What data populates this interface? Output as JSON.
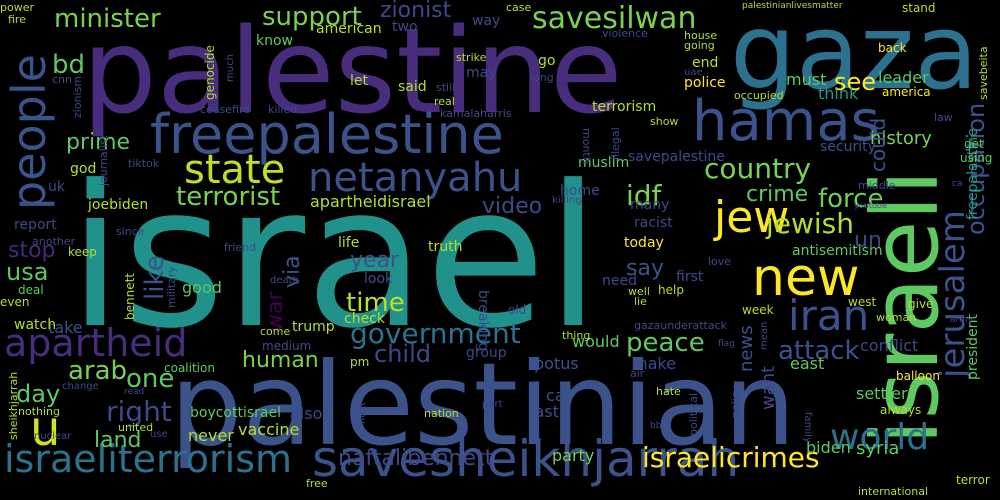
{
  "words": [
    {
      "text": "israel",
      "color": "#21918c"
    },
    {
      "text": "palestine",
      "color": "#472d7b"
    },
    {
      "text": "palestinian",
      "color": "#3b528b"
    },
    {
      "text": "gaza",
      "color": "#2c728e"
    },
    {
      "text": "israeli",
      "color": "#5ec962"
    },
    {
      "text": "freepalestine",
      "color": "#3b528b"
    },
    {
      "text": "savesheikhjarrah",
      "color": "#3b528b"
    },
    {
      "text": "hamas",
      "color": "#3b528b"
    },
    {
      "text": "new",
      "color": "#fde725"
    },
    {
      "text": "people",
      "color": "#3b528b"
    },
    {
      "text": "israeliterrorism",
      "color": "#2c728e"
    },
    {
      "text": "apartheid",
      "color": "#472d7b"
    },
    {
      "text": "netanyahu",
      "color": "#3b528b"
    },
    {
      "text": "jerusalem",
      "color": "#3b528b"
    },
    {
      "text": "state",
      "color": "#bddf26"
    },
    {
      "text": "u",
      "color": "#d2e21b"
    },
    {
      "text": "jew",
      "color": "#fde725"
    },
    {
      "text": "iran",
      "color": "#3b528b"
    },
    {
      "text": "world",
      "color": "#2c728e"
    },
    {
      "text": "savesilwan",
      "color": "#7ad151"
    },
    {
      "text": "jewish",
      "color": "#b5de2b"
    },
    {
      "text": "terrorist",
      "color": "#7ad151"
    },
    {
      "text": "country",
      "color": "#7ad151"
    },
    {
      "text": "minister",
      "color": "#7ad151"
    },
    {
      "text": "support",
      "color": "#7ad151"
    },
    {
      "text": "israelicrimes",
      "color": "#fde725"
    },
    {
      "text": "occupation",
      "color": "#3b528b"
    },
    {
      "text": "government",
      "color": "#2c728e"
    },
    {
      "text": "right",
      "color": "#3e4989"
    },
    {
      "text": "like",
      "color": "#3b528b"
    },
    {
      "text": "idf",
      "color": "#7ad151"
    },
    {
      "text": "naftalibennett",
      "color": "#3e4989"
    },
    {
      "text": "attack",
      "color": "#3b528b"
    },
    {
      "text": "arab",
      "color": "#7ad151"
    },
    {
      "text": "child",
      "color": "#3e4989"
    },
    {
      "text": "time",
      "color": "#bddf26"
    },
    {
      "text": "war",
      "color": "#440154"
    },
    {
      "text": "force",
      "color": "#6ece58"
    },
    {
      "text": "peace",
      "color": "#5ec962"
    },
    {
      "text": "land",
      "color": "#5ec962"
    },
    {
      "text": "day",
      "color": "#5ec962"
    },
    {
      "text": "one",
      "color": "#5ec962"
    },
    {
      "text": "human",
      "color": "#7ad151"
    },
    {
      "text": "bd",
      "color": "#5ec962"
    },
    {
      "text": "prime",
      "color": "#5ec962"
    },
    {
      "text": "see",
      "color": "#fde725"
    },
    {
      "text": "crime",
      "color": "#5ec962"
    },
    {
      "text": "usa",
      "color": "#5ec962"
    },
    {
      "text": "stop",
      "color": "#482878"
    },
    {
      "text": "year",
      "color": "#3b528b"
    },
    {
      "text": "via",
      "color": "#3b528b"
    },
    {
      "text": "un",
      "color": "#3e4989"
    },
    {
      "text": "say",
      "color": "#3b528b"
    },
    {
      "text": "video",
      "color": "#3e4989"
    },
    {
      "text": "zionist",
      "color": "#3e4989"
    },
    {
      "text": "news",
      "color": "#3b528b"
    },
    {
      "text": "apartheidisrael",
      "color": "#b5de2b"
    },
    {
      "text": "want",
      "color": "#3e4989"
    },
    {
      "text": "history",
      "color": "#7ad151"
    },
    {
      "text": "syria",
      "color": "#5ec962"
    },
    {
      "text": "biden",
      "color": "#5ec962"
    },
    {
      "text": "security",
      "color": "#3b528b"
    },
    {
      "text": "antisemitism",
      "color": "#5ec962"
    },
    {
      "text": "think",
      "color": "#1f9e89"
    },
    {
      "text": "must",
      "color": "#5ec962"
    },
    {
      "text": "leader",
      "color": "#5ec962"
    },
    {
      "text": "conflict",
      "color": "#3e4989"
    },
    {
      "text": "settler",
      "color": "#5ec962"
    },
    {
      "text": "president",
      "color": "#5ec962"
    },
    {
      "text": "freepalastine",
      "color": "#1fa187"
    },
    {
      "text": "east",
      "color": "#5ec962"
    },
    {
      "text": "could",
      "color": "#3b528b"
    },
    {
      "text": "vaccine",
      "color": "#b5de2b"
    },
    {
      "text": "never",
      "color": "#b5de2b"
    },
    {
      "text": "party",
      "color": "#7ad151"
    },
    {
      "text": "call",
      "color": "#3b528b"
    },
    {
      "text": "last",
      "color": "#3b528b"
    },
    {
      "text": "potus",
      "color": "#3b528b"
    },
    {
      "text": "would",
      "color": "#5ec962"
    },
    {
      "text": "make",
      "color": "#3e4989"
    },
    {
      "text": "also",
      "color": "#3e4989"
    },
    {
      "text": "check",
      "color": "#b5de2b"
    },
    {
      "text": "trump",
      "color": "#b5de2b"
    },
    {
      "text": "boycottisrael",
      "color": "#5ec962"
    },
    {
      "text": "coalition",
      "color": "#5ec962"
    },
    {
      "text": "good",
      "color": "#5ec962"
    },
    {
      "text": "take",
      "color": "#3b528b"
    },
    {
      "text": "watch",
      "color": "#b5de2b"
    },
    {
      "text": "report",
      "color": "#3e4989"
    },
    {
      "text": "joebiden",
      "color": "#b5de2b"
    },
    {
      "text": "life",
      "color": "#b5de2b"
    },
    {
      "text": "truth",
      "color": "#b5de2b"
    },
    {
      "text": "look",
      "color": "#3b528b"
    },
    {
      "text": "today",
      "color": "#fde725"
    },
    {
      "text": "breaking",
      "color": "#3e4989"
    },
    {
      "text": "group",
      "color": "#3e4989"
    },
    {
      "text": "need",
      "color": "#3e4989"
    },
    {
      "text": "first",
      "color": "#3e4989"
    },
    {
      "text": "muslim",
      "color": "#5ec962"
    },
    {
      "text": "savepalestine",
      "color": "#3e4989"
    },
    {
      "text": "terrorism",
      "color": "#b5de2b"
    },
    {
      "text": "home",
      "color": "#3e4989"
    },
    {
      "text": "many",
      "color": "#3e4989"
    },
    {
      "text": "racist",
      "color": "#3e4989"
    },
    {
      "text": "god",
      "color": "#b5de2b"
    },
    {
      "text": "uk",
      "color": "#3e4989"
    },
    {
      "text": "american",
      "color": "#b5de2b"
    },
    {
      "text": "know",
      "color": "#5ec962"
    },
    {
      "text": "two",
      "color": "#3e4989"
    },
    {
      "text": "way",
      "color": "#3e4989"
    },
    {
      "text": "let",
      "color": "#b5de2b"
    },
    {
      "text": "said",
      "color": "#b5de2b"
    },
    {
      "text": "may",
      "color": "#3e4989"
    },
    {
      "text": "go",
      "color": "#b5de2b"
    },
    {
      "text": "end",
      "color": "#b5de2b"
    },
    {
      "text": "police",
      "color": "#fde725"
    },
    {
      "text": "genocide",
      "color": "#b5de2b"
    },
    {
      "text": "keep",
      "color": "#b5de2b"
    },
    {
      "text": "bennett",
      "color": "#b5de2b"
    },
    {
      "text": "even",
      "color": "#b5de2b"
    },
    {
      "text": "deal",
      "color": "#5ec962"
    },
    {
      "text": "medium",
      "color": "#3e4989"
    },
    {
      "text": "pm",
      "color": "#b5de2b"
    },
    {
      "text": "old",
      "color": "#3e4989"
    },
    {
      "text": "help",
      "color": "#b5de2b"
    },
    {
      "text": "week",
      "color": "#b5de2b"
    },
    {
      "text": "west",
      "color": "#b5de2b"
    },
    {
      "text": "give",
      "color": "#b5de2b"
    },
    {
      "text": "back",
      "color": "#fde725"
    },
    {
      "text": "america",
      "color": "#fde725"
    },
    {
      "text": "stand",
      "color": "#b5de2b"
    },
    {
      "text": "using",
      "color": "#5ec962"
    },
    {
      "text": "get",
      "color": "#5ec962"
    },
    {
      "text": "always",
      "color": "#b5de2b"
    },
    {
      "text": "terror",
      "color": "#b5de2b"
    },
    {
      "text": "international",
      "color": "#b5de2b"
    },
    {
      "text": "balloon",
      "color": "#fde725"
    },
    {
      "text": "sheikhjarrah",
      "color": "#b5de2b"
    },
    {
      "text": "nothing",
      "color": "#b5de2b"
    },
    {
      "text": "united",
      "color": "#b5de2b"
    },
    {
      "text": "nation",
      "color": "#b5de2b"
    },
    {
      "text": "free",
      "color": "#b5de2b"
    },
    {
      "text": "political",
      "color": "#3e4989"
    },
    {
      "text": "policy",
      "color": "#3e4989"
    },
    {
      "text": "hate",
      "color": "#b5de2b"
    },
    {
      "text": "air",
      "color": "#3e4989"
    },
    {
      "text": "thing",
      "color": "#b5de2b"
    },
    {
      "text": "gazaunderattack",
      "color": "#3e4989"
    },
    {
      "text": "come",
      "color": "#b5de2b"
    },
    {
      "text": "occupied",
      "color": "#b5de2b"
    },
    {
      "text": "power",
      "color": "#b5de2b"
    },
    {
      "text": "fire",
      "color": "#b5de2b"
    },
    {
      "text": "cnn",
      "color": "#3e4989"
    },
    {
      "text": "zionism",
      "color": "#3e4989"
    },
    {
      "text": "tiktok",
      "color": "#3e4989"
    },
    {
      "text": "killed",
      "color": "#3e4989"
    },
    {
      "text": "ceasefire",
      "color": "#3e4989"
    },
    {
      "text": "real",
      "color": "#b5de2b"
    },
    {
      "text": "still",
      "color": "#3e4989"
    },
    {
      "text": "kamalaharris",
      "color": "#3e4989"
    },
    {
      "text": "long",
      "color": "#3e4989"
    },
    {
      "text": "strike",
      "color": "#b5de2b"
    },
    {
      "text": "house",
      "color": "#b5de2b"
    },
    {
      "text": "going",
      "color": "#b5de2b"
    },
    {
      "text": "case",
      "color": "#b5de2b"
    },
    {
      "text": "violence",
      "color": "#3e4989"
    },
    {
      "text": "palestinianlivesmatter",
      "color": "#b5de2b"
    },
    {
      "text": "law",
      "color": "#3e4989"
    },
    {
      "text": "savebeita",
      "color": "#b5de2b"
    },
    {
      "text": "uae",
      "color": "#3e4989"
    },
    {
      "text": "month",
      "color": "#3e4989"
    },
    {
      "text": "show",
      "color": "#b5de2b"
    },
    {
      "text": "illegal",
      "color": "#3e4989"
    },
    {
      "text": "journalist",
      "color": "#3e4989"
    },
    {
      "text": "much",
      "color": "#3e4989"
    },
    {
      "text": "another",
      "color": "#3e4989"
    },
    {
      "text": "since",
      "color": "#3e4989"
    },
    {
      "text": "military",
      "color": "#3e4989"
    },
    {
      "text": "friend",
      "color": "#3e4989"
    },
    {
      "text": "death",
      "color": "#3e4989"
    },
    {
      "text": "killing",
      "color": "#3e4989"
    },
    {
      "text": "well",
      "color": "#b5de2b"
    },
    {
      "text": "lie",
      "color": "#b5de2b"
    },
    {
      "text": "love",
      "color": "#3e4989"
    },
    {
      "text": "youtube",
      "color": "#3e4989"
    },
    {
      "text": "middle",
      "color": "#3e4989"
    },
    {
      "text": "woman",
      "color": "#b5de2b"
    },
    {
      "text": "mean",
      "color": "#3e4989"
    },
    {
      "text": "flag",
      "color": "#3e4989"
    },
    {
      "text": "family",
      "color": "#3e4989"
    },
    {
      "text": "change",
      "color": "#3e4989"
    },
    {
      "text": "read",
      "color": "#3e4989"
    },
    {
      "text": "next",
      "color": "#3e4989"
    },
    {
      "text": "part",
      "color": "#3e4989"
    },
    {
      "text": "use",
      "color": "#3e4989"
    },
    {
      "text": "bbc",
      "color": "#3e4989"
    },
    {
      "text": "nuclear",
      "color": "#3e4989"
    },
    {
      "text": "ca",
      "color": "#3e4989"
    },
    {
      "text": "army",
      "color": "#3e4989"
    }
  ]
}
